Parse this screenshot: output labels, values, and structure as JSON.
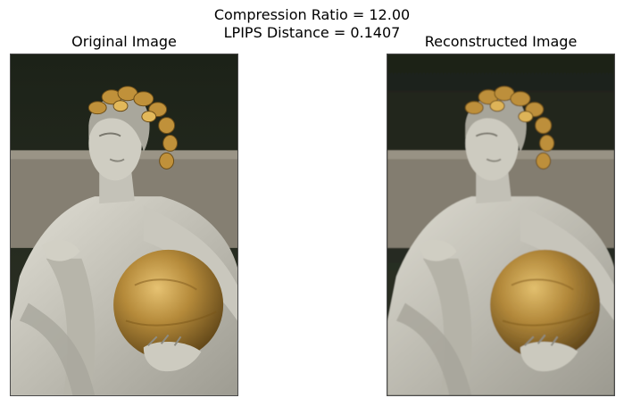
{
  "figure": {
    "suptitle_line1": "Compression Ratio = 12.00",
    "suptitle_line2": "LPIPS Distance = 0.1407"
  },
  "panels": [
    {
      "title": "Original Image"
    },
    {
      "title": "Reconstructed Image"
    }
  ],
  "colors": {
    "background_dark": "#22261c",
    "wall": "#8a8478",
    "statue_white": "#d8d6cc",
    "gold": "#b58a3a",
    "frame_border": "#4a4a4a"
  }
}
